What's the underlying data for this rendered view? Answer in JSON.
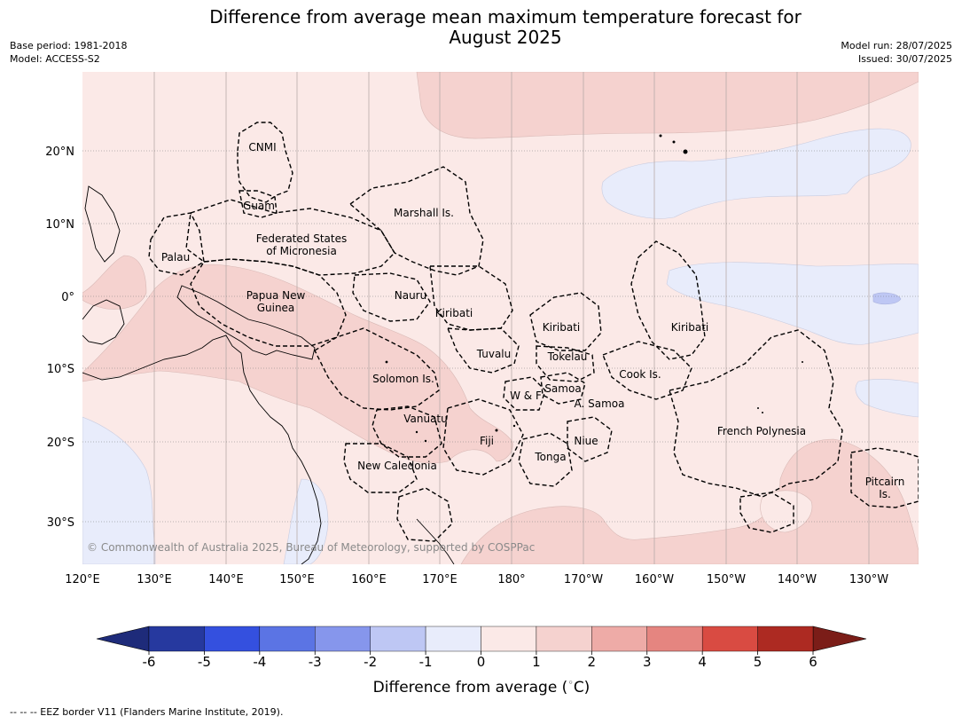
{
  "title_line1": "Difference from average mean maximum temperature forecast for",
  "title_line2": "August 2025",
  "base_period": "Base period: 1981-2018",
  "model": "Model: ACCESS-S2",
  "model_run": "Model run: 28/07/2025",
  "issued": "Issued: 30/07/2025",
  "copyright": "© Commonwealth of Australia 2025, Bureau of Meteorology, supported by COSPPac",
  "lat_labels": [
    "20°N",
    "10°N",
    "0°",
    "10°S",
    "20°S",
    "30°S"
  ],
  "lon_labels": [
    "120°E",
    "130°E",
    "140°E",
    "150°E",
    "160°E",
    "170°E",
    "180°",
    "170°W",
    "160°W",
    "150°W",
    "140°W",
    "130°W"
  ],
  "regions": [
    {
      "lines": [
        "CNMI"
      ]
    },
    {
      "lines": [
        "Guam"
      ]
    },
    {
      "lines": [
        "Marshall Is."
      ]
    },
    {
      "lines": [
        "Federated States",
        "of Micronesia"
      ]
    },
    {
      "lines": [
        "Palau"
      ]
    },
    {
      "lines": [
        "Papua New",
        "Guinea"
      ]
    },
    {
      "lines": [
        "Nauru"
      ]
    },
    {
      "lines": [
        "Kiribati"
      ]
    },
    {
      "lines": [
        "Kiribati"
      ]
    },
    {
      "lines": [
        "Kiribati"
      ]
    },
    {
      "lines": [
        "Tuvalu"
      ]
    },
    {
      "lines": [
        "Tokelau"
      ]
    },
    {
      "lines": [
        "Solomon Is."
      ]
    },
    {
      "lines": [
        "Cook Is."
      ]
    },
    {
      "lines": [
        "Samoa"
      ]
    },
    {
      "lines": [
        "W & F"
      ]
    },
    {
      "lines": [
        "A. Samoa"
      ]
    },
    {
      "lines": [
        "Vanuatu"
      ]
    },
    {
      "lines": [
        "French Polynesia"
      ]
    },
    {
      "lines": [
        "Fiji"
      ]
    },
    {
      "lines": [
        "Niue"
      ]
    },
    {
      "lines": [
        "Tonga"
      ]
    },
    {
      "lines": [
        "New Caledonia"
      ]
    },
    {
      "lines": [
        "Pitcairn",
        "Is."
      ]
    }
  ],
  "legend": {
    "ticks": [
      "-6",
      "-5",
      "-4",
      "-3",
      "-2",
      "-1",
      "0",
      "1",
      "2",
      "3",
      "4",
      "5",
      "6"
    ],
    "colors": [
      "#26399f",
      "#3450df",
      "#5b74e4",
      "#8696ec",
      "#bec7f4",
      "#e8ecfb",
      "#fbe9e7",
      "#f5d2cf",
      "#eeaba7",
      "#e58580",
      "#d94b42",
      "#ad2a22"
    ],
    "under_color": "#1e2b7a",
    "over_color": "#7b1d18",
    "title": "Difference from average ($^\\circ$C)"
  },
  "footnote": "--  --  -- EEZ border V11 (Flanders Marine Institute, 2019).",
  "colors": {
    "background_anomaly": "#fbe9e7",
    "warm_anomaly": "#f5d2cf",
    "cool_anomaly": "#e8ecfb",
    "cooler_anomaly": "#bec7f4"
  }
}
